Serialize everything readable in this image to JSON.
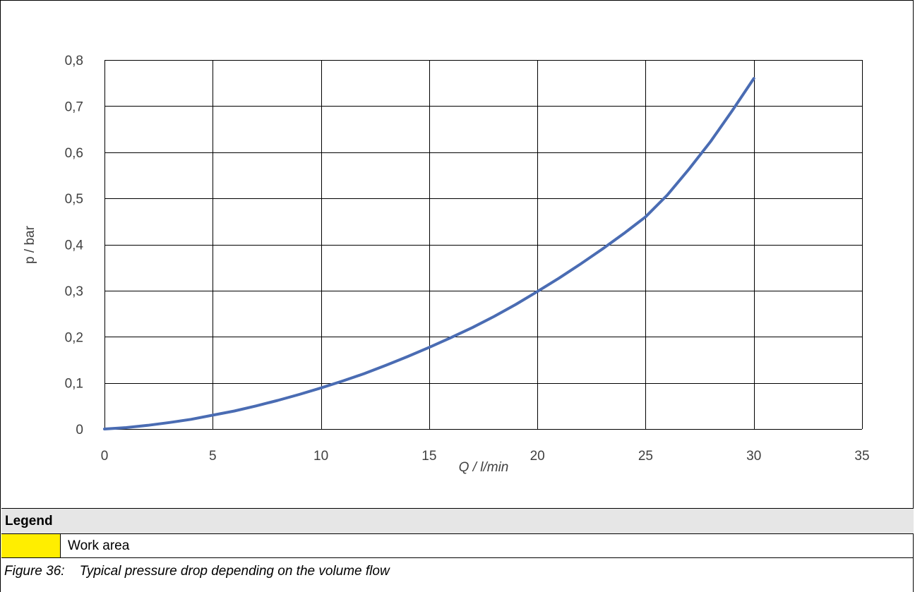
{
  "colors": {
    "line": "#4a6cb3",
    "grid": "#000000",
    "legend_swatch": "#ffee00",
    "legend_header_bg": "#e6e6e6"
  },
  "legend": {
    "title": "Legend",
    "items": [
      {
        "label": "Work area",
        "color": "#ffee00"
      }
    ]
  },
  "caption": {
    "number": "Figure 36:",
    "text": "Typical pressure drop depending on the volume flow"
  },
  "chart_data": {
    "type": "line",
    "title": "",
    "xlabel": "Q / l/min",
    "ylabel": "p / bar",
    "xlim": [
      0,
      35
    ],
    "ylim": [
      0,
      0.8
    ],
    "x_ticks": [
      0,
      5,
      10,
      15,
      20,
      25,
      30,
      35
    ],
    "y_ticks": [
      0,
      0.1,
      0.2,
      0.3,
      0.4,
      0.5,
      0.6,
      0.7,
      0.8
    ],
    "x_tick_labels": [
      "0",
      "5",
      "10",
      "15",
      "20",
      "25",
      "30",
      "35"
    ],
    "y_tick_labels": [
      "0",
      "0,1",
      "0,2",
      "0,3",
      "0,4",
      "0,5",
      "0,6",
      "0,7",
      "0,8"
    ],
    "grid": true,
    "series": [
      {
        "x": [
          0,
          1,
          2,
          3,
          4,
          5,
          6,
          7,
          8,
          9,
          10,
          11,
          12,
          13,
          14,
          15,
          16,
          17,
          18,
          19,
          20,
          21,
          22,
          23,
          24,
          25,
          26,
          27,
          28,
          29,
          30
        ],
        "y": [
          0,
          0.003,
          0.008,
          0.014,
          0.021,
          0.03,
          0.039,
          0.05,
          0.062,
          0.075,
          0.089,
          0.104,
          0.12,
          0.138,
          0.157,
          0.177,
          0.198,
          0.22,
          0.244,
          0.27,
          0.298,
          0.327,
          0.358,
          0.39,
          0.424,
          0.46,
          0.507,
          0.563,
          0.623,
          0.69,
          0.76
        ]
      }
    ]
  }
}
